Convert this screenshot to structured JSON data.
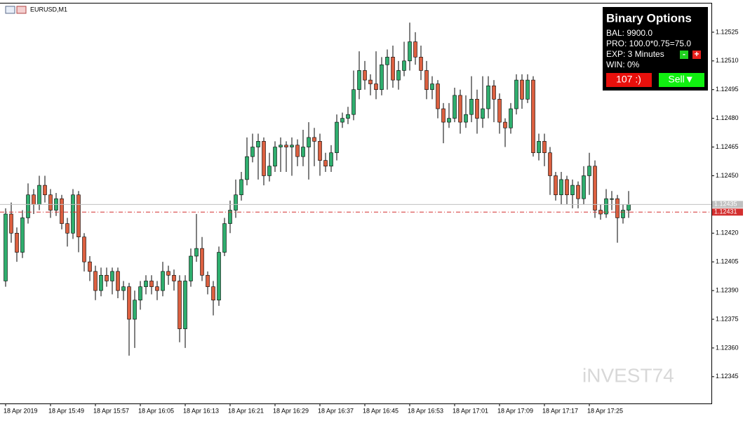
{
  "window_title": "EURUSD,M1",
  "watermark": "iNVEST74",
  "panel": {
    "title": "Binary Options",
    "lines": [
      "BAL: 9900.0",
      "PRO: 100.0*0.75=75.0",
      "EXP: 3 Minutes",
      "WIN: 0%"
    ],
    "minus": "-",
    "plus": "+",
    "buttons": [
      "107 :)",
      "Sell▼"
    ]
  },
  "chart_data": {
    "type": "candlestick",
    "grid": false,
    "up_color": "#2fae6e",
    "down_color": "#dc6040",
    "categories": [
      "18 Apr 2019",
      null,
      null,
      null,
      null,
      null,
      null,
      null,
      "18 Apr 15:49",
      null,
      null,
      null,
      null,
      null,
      null,
      null,
      "18 Apr 15:57",
      null,
      null,
      null,
      null,
      null,
      null,
      null,
      "18 Apr 16:05",
      null,
      null,
      null,
      null,
      null,
      null,
      null,
      "18 Apr 16:13",
      null,
      null,
      null,
      null,
      null,
      null,
      null,
      "18 Apr 16:21",
      null,
      null,
      null,
      null,
      null,
      null,
      null,
      "18 Apr 16:29",
      null,
      null,
      null,
      null,
      null,
      null,
      null,
      "18 Apr 16:37",
      null,
      null,
      null,
      null,
      null,
      null,
      null,
      "18 Apr 16:45",
      null,
      null,
      null,
      null,
      null,
      null,
      null,
      "18 Apr 16:53",
      null,
      null,
      null,
      null,
      null,
      null,
      null,
      "18 Apr 17:01",
      null,
      null,
      null,
      null,
      null,
      null,
      null,
      "18 Apr 17:09",
      null,
      null,
      null,
      null,
      null,
      null,
      null,
      "18 Apr 17:17",
      null,
      null,
      null,
      null,
      null,
      null,
      null,
      "18 Apr 17:25",
      null,
      null,
      null,
      null,
      null,
      null,
      null
    ],
    "open": [
      1.12395,
      1.1243,
      1.1242,
      1.1241,
      1.12428,
      1.1244,
      1.12435,
      1.12445,
      1.1244,
      1.12432,
      1.12438,
      1.12425,
      1.1242,
      1.1244,
      1.12418,
      1.12405,
      1.124,
      1.1239,
      1.12398,
      1.12395,
      1.124,
      1.1239,
      1.12392,
      1.12375,
      1.12385,
      1.12392,
      1.12395,
      1.12392,
      1.1239,
      1.124,
      1.12398,
      1.12395,
      1.1237,
      1.12395,
      1.12408,
      1.12412,
      1.12398,
      1.12392,
      1.12385,
      1.1241,
      1.12425,
      1.12432,
      1.1244,
      1.12448,
      1.1246,
      1.12465,
      1.12468,
      1.1245,
      1.12455,
      1.12465,
      1.12466,
      1.12465,
      1.12466,
      1.1246,
      1.12465,
      1.1247,
      1.12468,
      1.12458,
      1.12455,
      1.12462,
      1.12478,
      1.1248,
      1.12482,
      1.12495,
      1.12505,
      1.125,
      1.12498,
      1.12495,
      1.12508,
      1.12512,
      1.125,
      1.12505,
      1.1251,
      1.1252,
      1.12512,
      1.12505,
      1.12495,
      1.12498,
      1.12485,
      1.12478,
      1.1248,
      1.12492,
      1.12478,
      1.12482,
      1.1249,
      1.1248,
      1.12485,
      1.12497,
      1.1249,
      1.12478,
      1.12475,
      1.12485,
      1.125,
      1.1249,
      1.125,
      1.12462,
      1.12468,
      1.12462,
      1.1245,
      1.1244,
      1.12448,
      1.1244,
      1.12445,
      1.12438,
      1.1245,
      1.12455,
      1.12432,
      1.1243,
      1.12438,
      1.12438,
      1.12428,
      1.12432
    ],
    "high": [
      1.12433,
      1.12436,
      1.12423,
      1.12432,
      1.12446,
      1.12443,
      1.1245,
      1.1245,
      1.12443,
      1.12441,
      1.1244,
      1.12428,
      1.12443,
      1.12442,
      1.1242,
      1.12408,
      1.12403,
      1.12402,
      1.12402,
      1.12402,
      1.12402,
      1.12395,
      1.12394,
      1.1239,
      1.12395,
      1.12398,
      1.12398,
      1.12395,
      1.12405,
      1.12403,
      1.12401,
      1.12398,
      1.12398,
      1.12412,
      1.1243,
      1.12418,
      1.124,
      1.12395,
      1.12413,
      1.12428,
      1.12437,
      1.12448,
      1.12452,
      1.1247,
      1.12472,
      1.12472,
      1.1247,
      1.12462,
      1.12468,
      1.1247,
      1.12468,
      1.1247,
      1.12469,
      1.12474,
      1.12478,
      1.12475,
      1.12472,
      1.12462,
      1.12466,
      1.12482,
      1.12483,
      1.12486,
      1.12505,
      1.12515,
      1.1251,
      1.12503,
      1.12515,
      1.12512,
      1.12516,
      1.12518,
      1.1251,
      1.1252,
      1.1253,
      1.12525,
      1.12518,
      1.1251,
      1.12502,
      1.125,
      1.12488,
      1.12488,
      1.12496,
      1.12495,
      1.12492,
      1.12502,
      1.12495,
      1.12502,
      1.12502,
      1.125,
      1.12493,
      1.1248,
      1.12488,
      1.12503,
      1.12503,
      1.12503,
      1.12502,
      1.12472,
      1.12472,
      1.12465,
      1.12452,
      1.12452,
      1.1245,
      1.12448,
      1.12447,
      1.12455,
      1.12462,
      1.12458,
      1.12435,
      1.12443,
      1.12442,
      1.1244,
      1.12435,
      1.12442
    ],
    "low": [
      1.12392,
      1.12415,
      1.12405,
      1.12407,
      1.12425,
      1.1243,
      1.12432,
      1.12436,
      1.12428,
      1.12429,
      1.12422,
      1.12413,
      1.12417,
      1.1241,
      1.124,
      1.12395,
      1.12385,
      1.12387,
      1.12392,
      1.12388,
      1.12386,
      1.12385,
      1.12356,
      1.1236,
      1.1238,
      1.12388,
      1.12388,
      1.12385,
      1.12387,
      1.12393,
      1.1239,
      1.12363,
      1.1236,
      1.12392,
      1.12405,
      1.12395,
      1.12388,
      1.12377,
      1.12382,
      1.12408,
      1.1242,
      1.12428,
      1.12437,
      1.12445,
      1.12457,
      1.12448,
      1.12445,
      1.12447,
      1.12452,
      1.12452,
      1.12452,
      1.1245,
      1.12455,
      1.12455,
      1.12448,
      1.12455,
      1.1245,
      1.12452,
      1.12452,
      1.12458,
      1.12475,
      1.12477,
      1.12479,
      1.1249,
      1.12495,
      1.12492,
      1.1249,
      1.12492,
      1.12495,
      1.12496,
      1.12495,
      1.12502,
      1.12505,
      1.12508,
      1.125,
      1.1249,
      1.1249,
      1.1248,
      1.12467,
      1.12475,
      1.12478,
      1.12472,
      1.12475,
      1.12478,
      1.12472,
      1.12475,
      1.1248,
      1.12478,
      1.12472,
      1.12465,
      1.12472,
      1.12482,
      1.12485,
      1.12488,
      1.1246,
      1.12458,
      1.12455,
      1.1244,
      1.12437,
      1.12435,
      1.12435,
      1.12433,
      1.12433,
      1.12435,
      1.1244,
      1.12428,
      1.12427,
      1.12428,
      1.12432,
      1.12415,
      1.12425,
      1.12428
    ],
    "close": [
      1.1243,
      1.1242,
      1.1241,
      1.12428,
      1.1244,
      1.12435,
      1.12445,
      1.1244,
      1.12432,
      1.12438,
      1.12425,
      1.1242,
      1.1244,
      1.12418,
      1.12405,
      1.124,
      1.1239,
      1.12398,
      1.12395,
      1.124,
      1.1239,
      1.12392,
      1.12375,
      1.12385,
      1.12392,
      1.12395,
      1.12392,
      1.1239,
      1.124,
      1.12398,
      1.12395,
      1.1237,
      1.12395,
      1.12408,
      1.12412,
      1.12398,
      1.12392,
      1.12385,
      1.1241,
      1.12425,
      1.12432,
      1.1244,
      1.12448,
      1.1246,
      1.12465,
      1.12468,
      1.1245,
      1.12455,
      1.12465,
      1.12466,
      1.12465,
      1.12466,
      1.1246,
      1.12465,
      1.1247,
      1.12468,
      1.12458,
      1.12455,
      1.12462,
      1.12478,
      1.1248,
      1.12482,
      1.12495,
      1.12505,
      1.125,
      1.12498,
      1.12495,
      1.12508,
      1.12512,
      1.125,
      1.12505,
      1.1251,
      1.1252,
      1.12512,
      1.12505,
      1.12495,
      1.12498,
      1.12485,
      1.12478,
      1.1248,
      1.12492,
      1.12478,
      1.12482,
      1.1249,
      1.1248,
      1.12485,
      1.12497,
      1.1249,
      1.12478,
      1.12475,
      1.12485,
      1.125,
      1.1249,
      1.125,
      1.12462,
      1.12468,
      1.12462,
      1.1245,
      1.1244,
      1.12448,
      1.1244,
      1.12445,
      1.12438,
      1.1245,
      1.12455,
      1.12432,
      1.1243,
      1.12438,
      1.12438,
      1.12428,
      1.12432,
      1.12435
    ],
    "ylim": [
      1.12331,
      1.1254
    ],
    "yticks": [
      1.12525,
      {
        "value": 1.1251,
        "label": "1.12510"
      },
      1.12495,
      {
        "value": 1.1248,
        "label": "1.12480"
      },
      1.12465,
      {
        "value": 1.1245,
        "label": "1.12450"
      },
      {
        "value": 1.1242,
        "label": "1.12420"
      },
      1.12405,
      {
        "value": 1.1239,
        "label": "1.12390"
      },
      1.12375,
      {
        "value": 1.1236,
        "label": "1.12360"
      },
      1.12345
    ],
    "price_lines": [
      {
        "value": 1.12435,
        "color": "#c0c0c0"
      },
      {
        "value": 1.12431,
        "color": "#d32f2f"
      }
    ]
  }
}
